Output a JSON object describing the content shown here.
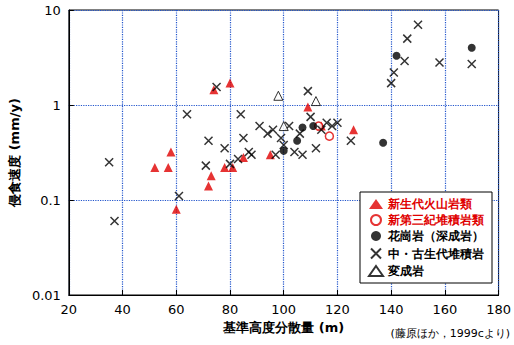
{
  "chart_data": {
    "type": "scatter",
    "x_label": "基準高度分散量 (m)",
    "y_label": "侵食速度 (mm/y)",
    "annotation": "(藤原ほか，1999cより)",
    "xlim": [
      20,
      180
    ],
    "xticks": [
      20,
      40,
      60,
      80,
      100,
      120,
      140,
      160,
      180
    ],
    "ylim": [
      0.01,
      10
    ],
    "yticks": [
      0.01,
      0.1,
      1,
      10
    ],
    "log": "y",
    "grid": true,
    "legend": "lower right",
    "series": [
      {
        "name": "新生代火山岩類",
        "color": "#e00000",
        "marker": "triangle",
        "x": [
          52,
          57,
          58,
          60,
          72,
          73,
          74,
          78,
          80,
          81,
          85,
          95,
          109,
          114,
          126
        ],
        "values": [
          0.22,
          0.22,
          0.32,
          0.08,
          0.14,
          0.18,
          1.45,
          0.22,
          1.7,
          0.22,
          0.28,
          0.3,
          0.95,
          0.6,
          0.55
        ]
      },
      {
        "name": "新第三紀堆積岩類",
        "color": "#e00000",
        "marker": "circle-open",
        "x": [
          113,
          117
        ],
        "values": [
          0.6,
          0.47
        ]
      },
      {
        "name": "花崗岩（深成岩）",
        "color": "#000000",
        "marker": "circle",
        "x": [
          100,
          105,
          107,
          111,
          137,
          142,
          170
        ],
        "values": [
          0.33,
          0.42,
          0.58,
          0.6,
          0.4,
          3.3,
          4
        ]
      },
      {
        "name": "中・古生代堆積岩",
        "color": "#000000",
        "marker": "x",
        "x": [
          35,
          37,
          61,
          64,
          71,
          72,
          75,
          78,
          80,
          83,
          84,
          85,
          87,
          88,
          91,
          94,
          96,
          97,
          99,
          100,
          102,
          104,
          106,
          107,
          109,
          110,
          112,
          114,
          116,
          118,
          120,
          125,
          140,
          141,
          145,
          146,
          150,
          158,
          170
        ],
        "values": [
          0.25,
          0.06,
          0.11,
          0.8,
          0.23,
          0.42,
          1.55,
          0.35,
          0.24,
          0.27,
          0.8,
          0.45,
          0.32,
          0.3,
          0.6,
          0.5,
          0.55,
          0.3,
          0.45,
          0.38,
          0.6,
          0.32,
          0.5,
          0.3,
          1.4,
          0.75,
          0.35,
          0.55,
          0.65,
          0.6,
          0.65,
          0.42,
          1.7,
          2.2,
          2.9,
          5,
          7,
          2.8,
          2.7
        ]
      },
      {
        "name": "変成岩",
        "color": "#000000",
        "marker": "triangle-open",
        "x": [
          98,
          100,
          112
        ],
        "values": [
          1.25,
          0.6,
          1.1
        ]
      }
    ]
  }
}
